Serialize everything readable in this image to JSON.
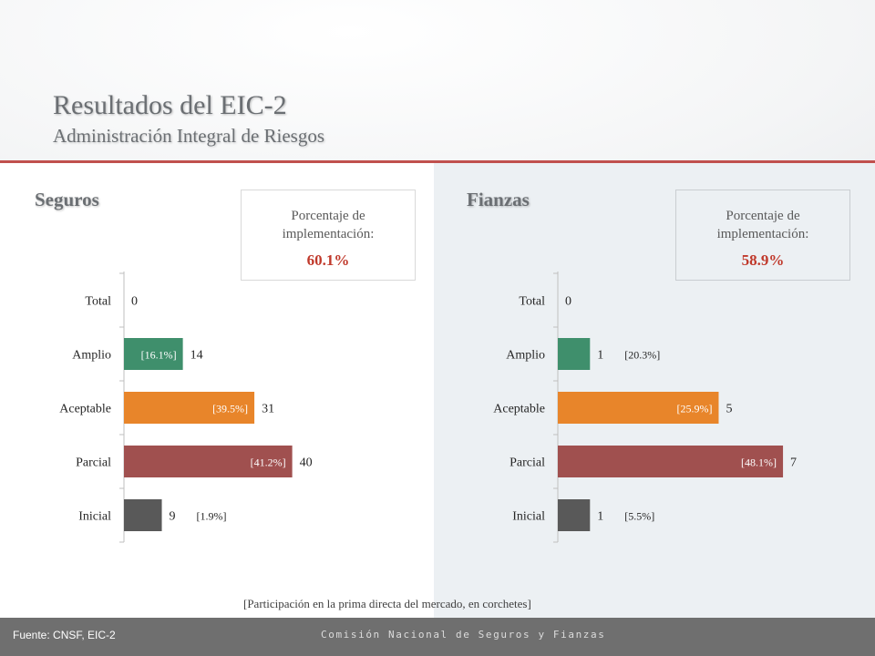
{
  "header": {
    "title": "Resultados del EIC-2",
    "subtitle": "Administración Integral de Riesgos"
  },
  "seguros": {
    "label": "Seguros",
    "pct_caption_1": "Porcentaje de",
    "pct_caption_2": "implementación:",
    "pct_value": "60.1%"
  },
  "fianzas": {
    "label": "Fianzas",
    "pct_caption_1": "Porcentaje de",
    "pct_caption_2": "implementación:",
    "pct_value": "58.9%"
  },
  "chart_data": [
    {
      "type": "bar",
      "orientation": "horizontal",
      "categories": [
        "Total",
        "Amplio",
        "Aceptable",
        "Parcial",
        "Inicial"
      ],
      "values": [
        0,
        14,
        31,
        40,
        9
      ],
      "shares": [
        "",
        "[16.1%]",
        "[39.5%]",
        "[41.2%]",
        "[1.9%]"
      ],
      "share_inside": [
        false,
        true,
        true,
        true,
        false
      ],
      "colors": [
        "#595959",
        "#3f8f6c",
        "#e8852a",
        "#a0504f",
        "#595959"
      ],
      "xlim": [
        0,
        52
      ]
    },
    {
      "type": "bar",
      "orientation": "horizontal",
      "categories": [
        "Total",
        "Amplio",
        "Aceptable",
        "Parcial",
        "Inicial"
      ],
      "values": [
        0,
        1,
        5,
        7,
        1
      ],
      "shares": [
        "",
        "[20.3%]",
        "[25.9%]",
        "[48.1%]",
        "[5.5%]"
      ],
      "share_inside": [
        false,
        false,
        true,
        true,
        false
      ],
      "colors": [
        "#595959",
        "#3f8f6c",
        "#e8852a",
        "#a0504f",
        "#595959"
      ],
      "xlim": [
        0,
        8.5
      ]
    }
  ],
  "footnote": "[Participación en la prima directa del mercado, en corchetes]",
  "footer": {
    "source": "Fuente: CNSF, EIC-2",
    "org": "Comisión Nacional de Seguros y Fianzas"
  }
}
